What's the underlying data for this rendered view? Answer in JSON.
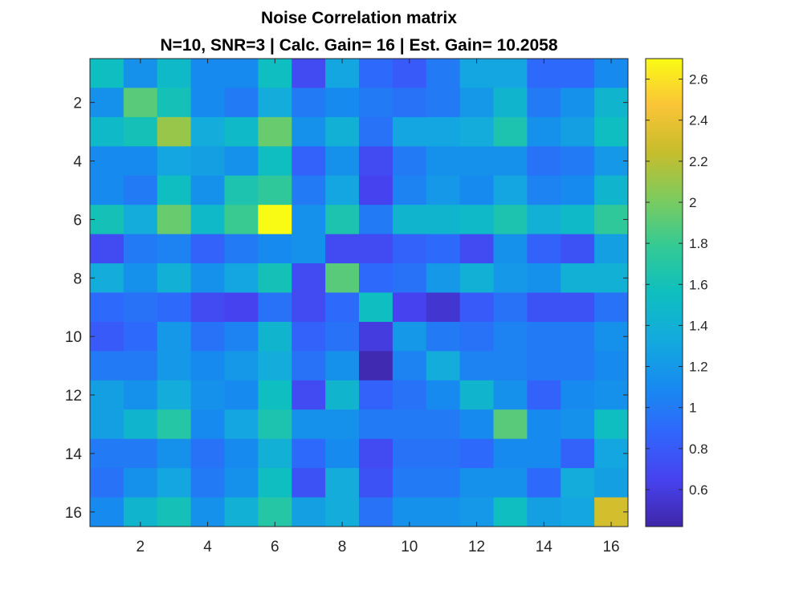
{
  "chart_data": {
    "type": "heatmap",
    "title": "Noise Correlation matrix",
    "subtitle": "N=10, SNR=3 | Calc. Gain= 16 | Est. Gain= 10.2058",
    "xlabel": "",
    "ylabel": "",
    "x_ticks": [
      2,
      4,
      6,
      8,
      10,
      12,
      14,
      16
    ],
    "y_ticks": [
      2,
      4,
      6,
      8,
      10,
      12,
      14,
      16
    ],
    "xlim": [
      0.5,
      16.5
    ],
    "ylim": [
      0.5,
      16.5
    ],
    "y_axis_direction": "reverse",
    "colormap": "parula",
    "color_limits": [
      0.42,
      2.7
    ],
    "colorbar_ticks": [
      0.6,
      0.8,
      1,
      1.2,
      1.4,
      1.6,
      1.8,
      2,
      2.2,
      2.4,
      2.6
    ],
    "colorbar_tick_labels": [
      "0.6",
      "0.8",
      "1",
      "1.2",
      "1.4",
      "1.6",
      "1.8",
      "2",
      "2.2",
      "2.4",
      "2.6"
    ],
    "colorbar_placement": "right",
    "grid": false,
    "values": [
      [
        1.55,
        1.15,
        1.5,
        1.1,
        1.1,
        1.55,
        0.7,
        1.3,
        0.9,
        0.8,
        1.0,
        1.3,
        1.3,
        0.9,
        0.9,
        1.1
      ],
      [
        1.15,
        1.9,
        1.6,
        1.1,
        1.0,
        1.35,
        1.0,
        1.1,
        1.0,
        0.95,
        1.0,
        1.2,
        1.45,
        1.0,
        1.15,
        1.45
      ],
      [
        1.5,
        1.6,
        2.1,
        1.35,
        1.5,
        1.95,
        1.15,
        1.4,
        0.95,
        1.3,
        1.3,
        1.35,
        1.65,
        1.15,
        1.25,
        1.55
      ],
      [
        1.1,
        1.1,
        1.3,
        1.25,
        1.15,
        1.55,
        0.85,
        1.15,
        0.7,
        1.0,
        1.15,
        1.15,
        1.15,
        0.95,
        1.0,
        1.2
      ],
      [
        1.1,
        1.0,
        1.55,
        1.15,
        1.65,
        1.75,
        1.0,
        1.3,
        0.65,
        1.05,
        1.2,
        1.1,
        1.3,
        1.05,
        1.1,
        1.45
      ],
      [
        1.6,
        1.35,
        1.95,
        1.5,
        1.8,
        2.7,
        1.15,
        1.65,
        1.0,
        1.45,
        1.45,
        1.5,
        1.65,
        1.4,
        1.5,
        1.75
      ],
      [
        0.7,
        1.0,
        1.05,
        0.85,
        1.0,
        1.1,
        1.15,
        0.7,
        0.7,
        0.85,
        0.9,
        0.7,
        1.15,
        0.85,
        0.75,
        1.25
      ],
      [
        1.35,
        1.15,
        1.4,
        1.15,
        1.3,
        1.6,
        0.7,
        1.9,
        0.9,
        0.95,
        1.2,
        1.4,
        1.2,
        1.15,
        1.4,
        1.4
      ],
      [
        0.9,
        0.95,
        0.9,
        0.7,
        0.65,
        0.95,
        0.7,
        0.9,
        1.55,
        0.65,
        0.55,
        0.8,
        0.95,
        0.75,
        0.75,
        0.95
      ],
      [
        0.8,
        0.9,
        1.2,
        0.95,
        1.05,
        1.45,
        0.85,
        0.95,
        0.6,
        1.2,
        1.0,
        0.95,
        1.05,
        1.0,
        1.0,
        1.15
      ],
      [
        1.0,
        1.0,
        1.2,
        1.1,
        1.2,
        1.35,
        0.95,
        1.15,
        0.45,
        1.05,
        1.35,
        1.05,
        1.05,
        1.0,
        1.0,
        1.1
      ],
      [
        1.25,
        1.15,
        1.35,
        1.15,
        1.1,
        1.55,
        0.7,
        1.45,
        0.85,
        0.95,
        1.1,
        1.45,
        1.15,
        0.85,
        1.1,
        1.15
      ],
      [
        1.25,
        1.45,
        1.7,
        1.1,
        1.3,
        1.65,
        1.15,
        1.15,
        1.0,
        1.0,
        1.0,
        1.1,
        1.9,
        1.1,
        1.15,
        1.55
      ],
      [
        1.0,
        1.0,
        1.15,
        0.95,
        1.1,
        1.4,
        0.9,
        1.1,
        0.7,
        0.95,
        0.95,
        0.9,
        1.1,
        1.1,
        0.85,
        1.3
      ],
      [
        0.95,
        1.15,
        1.3,
        1.0,
        1.15,
        1.55,
        0.75,
        1.35,
        0.75,
        1.0,
        1.0,
        1.15,
        1.15,
        0.9,
        1.35,
        1.25
      ],
      [
        1.1,
        1.45,
        1.6,
        1.15,
        1.4,
        1.7,
        1.25,
        1.35,
        0.95,
        1.15,
        1.15,
        1.2,
        1.55,
        1.25,
        1.3,
        2.3
      ]
    ]
  }
}
